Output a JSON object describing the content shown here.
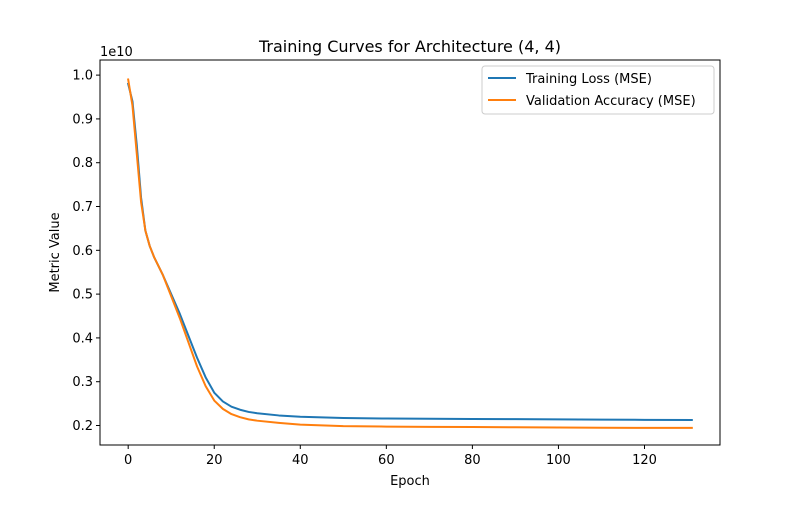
{
  "chart_data": {
    "type": "line",
    "title": "Training Curves for Architecture (4, 4)",
    "xlabel": "Epoch",
    "ylabel": "Metric Value",
    "y_offset_label": "1e10",
    "y_scale": 10000000000,
    "xlim": [
      -6.55,
      137.55
    ],
    "ylim": [
      0.1555,
      1.0345
    ],
    "x_ticks": [
      0,
      20,
      40,
      60,
      80,
      100,
      120
    ],
    "x_tick_labels": [
      "0",
      "20",
      "40",
      "60",
      "80",
      "100",
      "120"
    ],
    "y_ticks": [
      0.2,
      0.3,
      0.4,
      0.5,
      0.6,
      0.7,
      0.8,
      0.9,
      1.0
    ],
    "y_tick_labels": [
      "0.2",
      "0.3",
      "0.4",
      "0.5",
      "0.6",
      "0.7",
      "0.8",
      "0.9",
      "1.0"
    ],
    "grid": false,
    "legend_position": "top-right",
    "series": [
      {
        "name": "Training Loss (MSE)",
        "color": "#1f77b4",
        "x": [
          0,
          1,
          2,
          3,
          4,
          5,
          6,
          8,
          10,
          12,
          14,
          16,
          18,
          20,
          22,
          24,
          26,
          28,
          30,
          35,
          40,
          50,
          60,
          70,
          80,
          90,
          100,
          110,
          120,
          131
        ],
        "y": [
          0.98,
          0.94,
          0.84,
          0.72,
          0.645,
          0.61,
          0.585,
          0.545,
          0.5,
          0.455,
          0.405,
          0.355,
          0.31,
          0.275,
          0.255,
          0.243,
          0.236,
          0.231,
          0.228,
          0.223,
          0.22,
          0.217,
          0.216,
          0.2155,
          0.215,
          0.2145,
          0.214,
          0.2135,
          0.213,
          0.2125
        ]
      },
      {
        "name": "Validation Accuracy (MSE)",
        "color": "#ff7f0e",
        "x": [
          0,
          1,
          2,
          3,
          4,
          5,
          6,
          8,
          10,
          12,
          14,
          16,
          18,
          20,
          22,
          24,
          26,
          28,
          30,
          35,
          40,
          50,
          60,
          70,
          80,
          90,
          100,
          110,
          120,
          131
        ],
        "y": [
          0.99,
          0.93,
          0.82,
          0.71,
          0.645,
          0.61,
          0.585,
          0.545,
          0.495,
          0.445,
          0.39,
          0.335,
          0.29,
          0.257,
          0.238,
          0.226,
          0.219,
          0.214,
          0.211,
          0.206,
          0.202,
          0.1985,
          0.1975,
          0.197,
          0.1965,
          0.196,
          0.1955,
          0.195,
          0.1945,
          0.1945
        ]
      }
    ]
  }
}
